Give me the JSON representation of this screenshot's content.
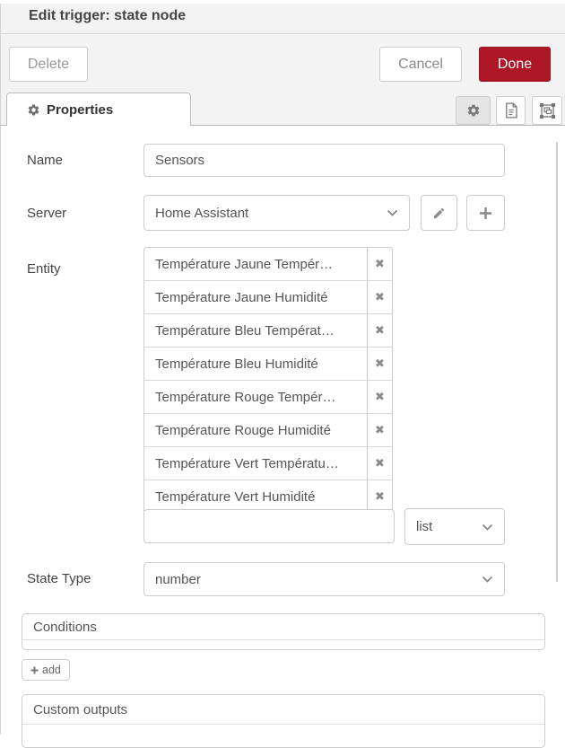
{
  "dialog": {
    "title": "Edit trigger: state node"
  },
  "toolbar": {
    "delete_label": "Delete",
    "cancel_label": "Cancel",
    "done_label": "Done"
  },
  "tabs": {
    "properties_label": "Properties",
    "icon_buttons": [
      "gear-icon",
      "document-icon",
      "object-group-icon"
    ]
  },
  "form": {
    "name": {
      "label": "Name",
      "value": "Sensors"
    },
    "server": {
      "label": "Server",
      "value": "Home Assistant"
    },
    "entity": {
      "label": "Entity",
      "items": [
        "Température Jaune Tempér…",
        "Température Jaune Humidité",
        "Température Bleu Températ…",
        "Température Bleu Humidité",
        "Température Rouge Tempér…",
        "Température Rouge Humidité",
        "Température Vert Températu…",
        "Température Vert Humidité"
      ],
      "new_value": "",
      "mode_value": "list",
      "remove_icon": "x-icon"
    },
    "state_type": {
      "label": "State Type",
      "value": "number"
    },
    "conditions": {
      "label": "Conditions",
      "add_label": "add"
    },
    "custom_outputs": {
      "label": "Custom outputs"
    }
  },
  "icons": {
    "tab": "gear-icon",
    "server_edit": "pencil-icon",
    "server_add": "plus-icon",
    "selects": "chevron-down-icon",
    "add_button": "plus-icon"
  },
  "colors": {
    "primary": "#AD1625",
    "band_bg": "#f3f3f3",
    "border": "#cccccc",
    "text": "#555555"
  }
}
